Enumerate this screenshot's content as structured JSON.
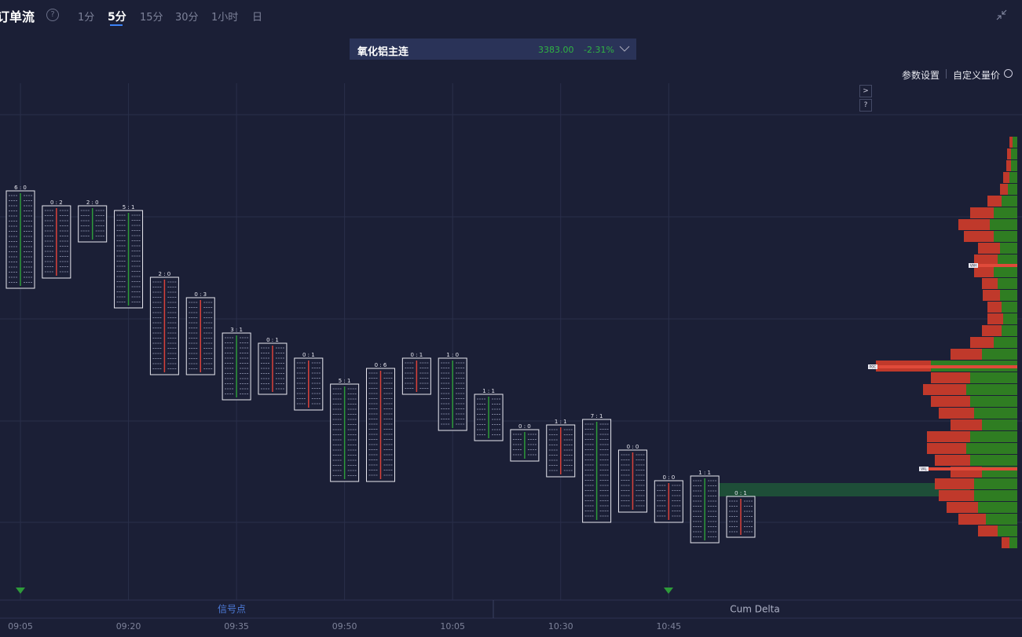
{
  "header": {
    "title": "订单流",
    "help": "?",
    "tabs": [
      "1分",
      "5分",
      "15分",
      "30分",
      "1小时",
      "日"
    ],
    "active_tab": 1
  },
  "instrument": {
    "name": "氧化铝主连",
    "price": "3383.00",
    "change": "-2.31%"
  },
  "toolbar": {
    "settings": "参数设置",
    "custom": "自定义量价",
    "side_buttons": [
      ">",
      "?"
    ]
  },
  "bottom_tabs": [
    "信号点",
    "Cum Delta"
  ],
  "chart_data": {
    "type": "footprint",
    "ylim": [
      3300,
      3430
    ],
    "categories": [
      "09:05",
      null,
      null,
      "09:20",
      null,
      null,
      "09:35",
      null,
      null,
      "09:50",
      null,
      null,
      "10:05",
      null,
      null,
      "10:30",
      null,
      null,
      "10:45",
      null,
      null
    ],
    "candles": [
      {
        "header": "6 : 0",
        "high": 3402.6,
        "low": 3377.8,
        "color": "#2e9b3a"
      },
      {
        "header": "0 : 2",
        "high": 3398.8,
        "low": 3380.4,
        "color": "#d9423a"
      },
      {
        "header": "2 : 0",
        "high": 3398.8,
        "low": 3389.6,
        "color": "#2e9b3a"
      },
      {
        "header": "5 : 1",
        "high": 3397.6,
        "low": 3372.8,
        "color": "#2e9b3a"
      },
      {
        "header": "2 : 0",
        "high": 3380.6,
        "low": 3355.8,
        "color": "#d9423a"
      },
      {
        "header": "0 : 3",
        "high": 3375.4,
        "low": 3355.8,
        "color": "#d9423a"
      },
      {
        "header": "3 : 1",
        "high": 3366.4,
        "low": 3349.4,
        "color": "#2e9b3a"
      },
      {
        "header": "0 : 1",
        "high": 3363.8,
        "low": 3350.8,
        "color": "#d9423a"
      },
      {
        "header": "0 : 1",
        "high": 3360,
        "low": 3346.8,
        "color": "#d9423a"
      },
      {
        "header": "5 : 1",
        "high": 3353.4,
        "low": 3328.6,
        "color": "#2e9b3a"
      },
      {
        "header": "0 : 6",
        "high": 3357.4,
        "low": 3328.6,
        "color": "#d9423a"
      },
      {
        "header": "0 : 1",
        "high": 3360,
        "low": 3350.8,
        "color": "#d9423a"
      },
      {
        "header": "1 : 0",
        "high": 3360,
        "low": 3341.6,
        "color": "#2e9b3a"
      },
      {
        "header": "1 : 1",
        "high": 3350.8,
        "low": 3339,
        "color": "#2e9b3a"
      },
      {
        "header": "0 : 0",
        "high": 3341.8,
        "low": 3333.8,
        "color": "#2e9b3a"
      },
      {
        "header": "1 : 1",
        "high": 3343,
        "low": 3329.8,
        "color": "#d9423a"
      },
      {
        "header": "7 : 1",
        "high": 3344.4,
        "low": 3318.2,
        "color": "#2e9b3a"
      },
      {
        "header": "0 : 0",
        "high": 3336.6,
        "low": 3320.8,
        "color": "#d9423a"
      },
      {
        "header": "0 : 0",
        "high": 3328.8,
        "low": 3318.2,
        "color": "#d9423a"
      },
      {
        "header": "1 : 1",
        "high": 3330,
        "low": 3313,
        "color": "#2e9b3a"
      },
      {
        "header": "0 : 1",
        "high": 3324.8,
        "low": 3314.4,
        "color": "#d9423a"
      }
    ],
    "profile": {
      "step": 3,
      "sell_color": "#c0392b",
      "buy_color": "#2f7d22",
      "prices": [
        3415,
        3412,
        3409,
        3406,
        3403,
        3400,
        3397,
        3394,
        3391,
        3388,
        3385,
        3382,
        3379,
        3376,
        3373,
        3370,
        3367,
        3364,
        3361,
        3358,
        3355,
        3352,
        3349,
        3346,
        3343,
        3340,
        3337,
        3334,
        3331,
        3328,
        3325,
        3322,
        3319,
        3316,
        3313
      ],
      "sell": [
        4,
        5,
        6,
        8,
        10,
        18,
        30,
        40,
        38,
        28,
        30,
        25,
        20,
        22,
        18,
        20,
        25,
        30,
        40,
        70,
        50,
        55,
        50,
        45,
        40,
        55,
        50,
        45,
        40,
        50,
        45,
        40,
        35,
        25,
        10
      ],
      "buy": [
        6,
        8,
        8,
        10,
        12,
        20,
        30,
        35,
        30,
        22,
        25,
        30,
        25,
        22,
        20,
        18,
        20,
        30,
        45,
        110,
        60,
        65,
        60,
        55,
        45,
        60,
        65,
        60,
        45,
        55,
        55,
        50,
        40,
        25,
        10
      ]
    },
    "markers": [
      {
        "label": "VAH",
        "value": 3383.6
      },
      {
        "label": "POC",
        "value": 3357.8
      },
      {
        "label": "VAL",
        "value": 3331.8
      }
    ]
  }
}
